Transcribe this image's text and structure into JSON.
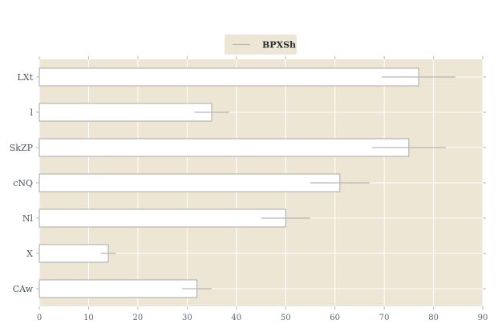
{
  "chart_data": {
    "type": "bar",
    "orientation": "horizontal",
    "categories": [
      "LXt",
      "l",
      "SkZP",
      "cNQ",
      "Nl",
      "X",
      "CAw"
    ],
    "series": [
      {
        "name": "BPXSh",
        "values": [
          77,
          35,
          75,
          61,
          50,
          14,
          32
        ],
        "error": [
          7.5,
          3.5,
          7.5,
          6,
          5,
          1.5,
          3
        ]
      }
    ],
    "xlim": [
      0,
      90
    ],
    "xticks": [
      "0",
      "10",
      "20",
      "30",
      "40",
      "50",
      "60",
      "70",
      "80",
      "90"
    ],
    "grid": true,
    "legend_position": "top-center",
    "colors": {
      "plot_bg": "#ede6d4",
      "bar_fill": "#ffffff",
      "bar_edge": "#a9a9a9",
      "error_bar": "#b8b8b8",
      "grid": "#ffffff",
      "legend_bg": "#ede6d4",
      "axis_text": "#5a6670"
    }
  }
}
